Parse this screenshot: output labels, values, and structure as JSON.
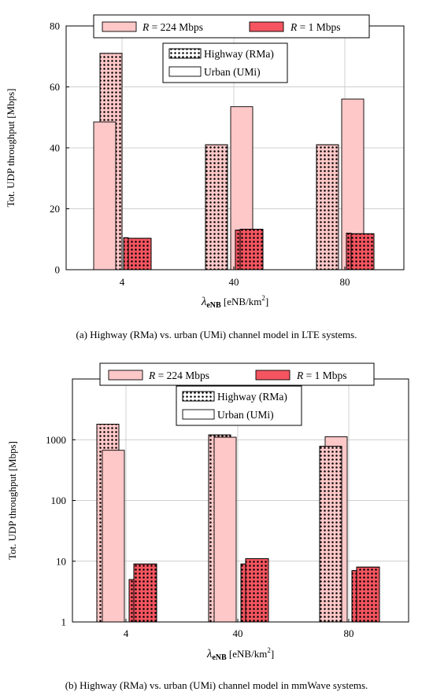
{
  "chart_data": [
    {
      "type": "bar",
      "categories": [
        "4",
        "40",
        "80"
      ],
      "xlabel": "λeNB [eNB/km2]",
      "ylabel": "Tot. UDP throughput [Mbps]",
      "ylim": [
        0,
        80
      ],
      "yscale": "linear",
      "yticks": [
        "0",
        "20",
        "40",
        "60",
        "80"
      ],
      "grid": true,
      "legend_placement": "top-center",
      "caption": "(a) Highway (RMa) vs. urban (UMi) channel model in LTE systems.",
      "series": [
        {
          "name": "R = 224 Mbps, Highway (RMa)",
          "values": [
            71,
            41,
            41
          ]
        },
        {
          "name": "R = 224 Mbps, Urban (UMi)",
          "values": [
            48.5,
            53.5,
            56
          ]
        },
        {
          "name": "R = 1 Mbps, Highway (RMa)",
          "values": [
            10.5,
            13,
            12
          ]
        },
        {
          "name": "R = 1 Mbps, Urban (UMi)",
          "values": [
            10.3,
            13.3,
            11.8
          ]
        }
      ]
    },
    {
      "type": "bar",
      "categories": [
        "4",
        "40",
        "80"
      ],
      "xlabel": "λeNB [eNB/km2]",
      "ylabel": "Tot. UDP throughput [Mbps]",
      "ylim": [
        1,
        10000
      ],
      "yscale": "log",
      "yticks": [
        "1",
        "10",
        "100",
        "1000"
      ],
      "grid": true,
      "legend_placement": "top-center",
      "caption": "(b) Highway (RMa) vs. urban (UMi) channel model in mmWave systems.",
      "series": [
        {
          "name": "R = 224 Mbps, Highway (RMa)",
          "values": [
            1800,
            1200,
            780
          ]
        },
        {
          "name": "R = 224 Mbps, Urban (UMi)",
          "values": [
            670,
            1100,
            1120
          ]
        },
        {
          "name": "R = 1 Mbps, Highway (RMa)",
          "values": [
            5,
            9,
            7
          ]
        },
        {
          "name": "R = 1 Mbps, Urban (UMi)",
          "values": [
            9,
            11,
            8
          ]
        }
      ]
    }
  ],
  "legend": {
    "rate_high_var": "R",
    "rate_high_rest": " = 224 Mbps",
    "rate_low_var": "R",
    "rate_low_rest": " = 1 Mbps",
    "highway": "Highway (RMa)",
    "urban": "Urban (UMi)"
  },
  "axis_text": {
    "x_lambda": "λ",
    "x_sub": "eNB",
    "x_unit_pre": " [eNB/km",
    "x_sup": "2",
    "x_unit_post": "]"
  },
  "colors": {
    "high_fill": "#ffc8c8",
    "low_fill": "#f45560",
    "grid": "#bfbfbf",
    "axis": "#000000"
  }
}
